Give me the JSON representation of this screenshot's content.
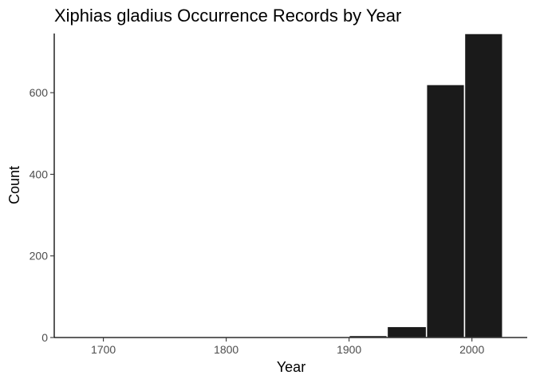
{
  "chart_data": {
    "type": "bar",
    "title": "Xiphias gladius Occurrence Records by Year",
    "xlabel": "Year",
    "ylabel": "Count",
    "bins": [
      {
        "start": 1900,
        "end": 1931,
        "value": 5
      },
      {
        "start": 1931,
        "end": 1963,
        "value": 27
      },
      {
        "start": 1963,
        "end": 1994,
        "value": 620
      },
      {
        "start": 1994,
        "end": 2025,
        "value": 745
      }
    ],
    "xlim": [
      1660,
      2045
    ],
    "ylim": [
      0,
      745
    ],
    "xticks": [
      1700,
      1800,
      1900,
      2000
    ],
    "xtick_labels": [
      "1700",
      "1800",
      "1900",
      "2000"
    ],
    "yticks": [
      0,
      200,
      400,
      600
    ],
    "ytick_labels": [
      "0",
      "200",
      "400",
      "600"
    ],
    "grid": false,
    "bar_color": "#1a1a1a",
    "bar_outline_color": "#ffffff"
  }
}
